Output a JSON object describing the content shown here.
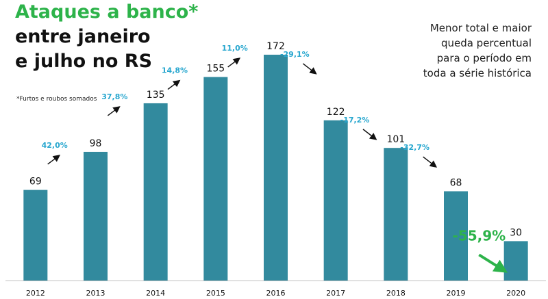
{
  "title": {
    "line1": "Ataques a banco*",
    "line2": "entre janeiro",
    "line3": "e julho no RS"
  },
  "footnote": "*Furtos e roubos somados",
  "note_lines": [
    "Menor total e maior",
    "queda percentual",
    "para o período em",
    "toda a série histórica"
  ],
  "colors": {
    "bar": "#328a9e",
    "pct": "#28a7cf",
    "highlight": "#2db34a",
    "arrow": "#111111"
  },
  "chart_data": {
    "type": "bar",
    "categories": [
      "2012",
      "2013",
      "2014",
      "2015",
      "2016",
      "2017",
      "2018",
      "2019",
      "2020"
    ],
    "values": [
      69,
      98,
      135,
      155,
      172,
      122,
      101,
      68,
      30
    ],
    "value_labels": [
      "69",
      "98",
      "135",
      "155",
      "172",
      "122",
      "101",
      "68",
      "30"
    ],
    "pct_changes": [
      "42,0%",
      "37,8%",
      "14,8%",
      "11,0%",
      "-29,1%",
      "-17,2%",
      "-32,7%",
      "-55,9%"
    ],
    "highlight_change": "-55,9%",
    "ylim": [
      0,
      185
    ],
    "grid": false,
    "legend": "none"
  }
}
